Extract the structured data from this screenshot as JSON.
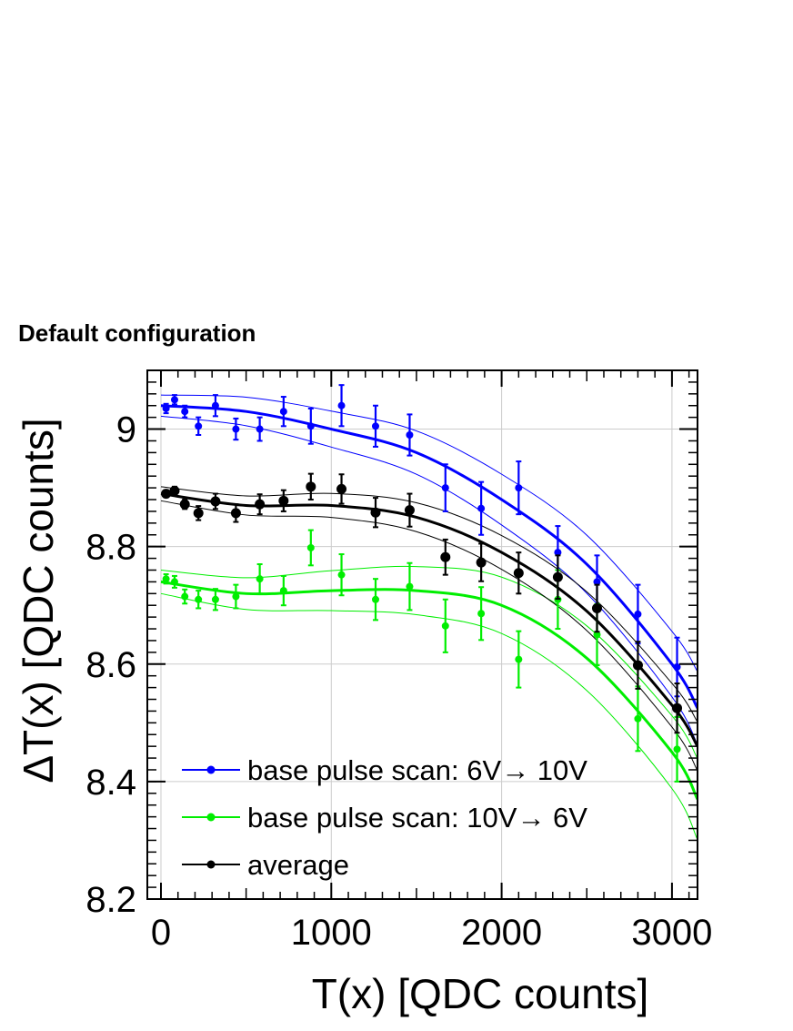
{
  "chart_data": {
    "type": "scatter",
    "title": "Default configuration",
    "xlabel": "T(x) [QDC counts]",
    "ylabel": "ΔT(x) [QDC counts]",
    "xlim": [
      -80,
      3150
    ],
    "ylim": [
      8.2,
      9.1
    ],
    "xticks": [
      0,
      1000,
      2000,
      3000
    ],
    "yticks": [
      8.2,
      8.4,
      8.6,
      8.8,
      9
    ],
    "ytick_labels": [
      "8.2",
      "8.4",
      "8.6",
      "8.8",
      "9"
    ],
    "grid": true,
    "legend_position": "bottom-left",
    "series": [
      {
        "name": "base pulse scan: 6V→ 10V",
        "legend_label_main": "base pulse scan: 6V",
        "legend_label_tail": " 10V",
        "color": "#0000ff",
        "x": [
          30,
          80,
          140,
          220,
          320,
          440,
          580,
          720,
          880,
          1060,
          1260,
          1460,
          1670,
          1880,
          2100,
          2330,
          2560,
          2800,
          3030
        ],
        "y": [
          9.035,
          9.05,
          9.03,
          9.005,
          9.04,
          9.0,
          9.0,
          9.03,
          9.005,
          9.04,
          9.005,
          8.99,
          8.9,
          8.865,
          8.9,
          8.79,
          8.74,
          8.685,
          8.595
        ],
        "err": [
          0.008,
          0.008,
          0.01,
          0.015,
          0.018,
          0.018,
          0.02,
          0.025,
          0.03,
          0.035,
          0.035,
          0.035,
          0.04,
          0.045,
          0.045,
          0.045,
          0.045,
          0.05,
          0.05
        ],
        "fit_x": [
          0,
          500,
          1000,
          1500,
          2000,
          2500,
          3000,
          3150
        ],
        "fit_y": [
          9.04,
          9.03,
          9.0,
          8.96,
          8.88,
          8.77,
          8.6,
          8.525
        ],
        "fit_band": 0.018
      },
      {
        "name": "base pulse scan: 10V→ 6V",
        "legend_label_main": "base pulse scan: 10V",
        "legend_label_tail": " 6V",
        "color": "#00ee00",
        "x": [
          30,
          80,
          140,
          220,
          320,
          440,
          580,
          720,
          880,
          1060,
          1260,
          1460,
          1670,
          1880,
          2100,
          2330,
          2560,
          2800,
          3030
        ],
        "y": [
          8.745,
          8.74,
          8.715,
          8.71,
          8.71,
          8.715,
          8.745,
          8.725,
          8.798,
          8.752,
          8.71,
          8.732,
          8.665,
          8.686,
          8.608,
          8.71,
          8.65,
          8.507,
          8.455
        ],
        "err": [
          0.008,
          0.01,
          0.012,
          0.015,
          0.018,
          0.02,
          0.025,
          0.025,
          0.03,
          0.035,
          0.035,
          0.04,
          0.045,
          0.045,
          0.048,
          0.05,
          0.052,
          0.055,
          0.055
        ],
        "fit_x": [
          0,
          500,
          1000,
          1500,
          2000,
          2500,
          3000,
          3150
        ],
        "fit_y": [
          8.74,
          8.72,
          8.725,
          8.725,
          8.7,
          8.61,
          8.45,
          8.37
        ],
        "fit_band": 0.02
      },
      {
        "name": "average",
        "legend_label_main": "average",
        "legend_label_tail": "",
        "color": "#000000",
        "x": [
          30,
          80,
          140,
          220,
          320,
          440,
          580,
          720,
          880,
          1060,
          1260,
          1460,
          1670,
          1880,
          2100,
          2330,
          2560,
          2800,
          3030
        ],
        "y": [
          8.89,
          8.895,
          8.872,
          8.857,
          8.877,
          8.857,
          8.872,
          8.878,
          8.902,
          8.898,
          8.858,
          8.862,
          8.782,
          8.773,
          8.755,
          8.748,
          8.695,
          8.598,
          8.525
        ],
        "err": [
          0.006,
          0.007,
          0.008,
          0.012,
          0.013,
          0.015,
          0.017,
          0.018,
          0.022,
          0.025,
          0.025,
          0.028,
          0.03,
          0.032,
          0.035,
          0.037,
          0.04,
          0.04,
          0.042
        ],
        "fit_x": [
          0,
          500,
          1000,
          1500,
          2000,
          2500,
          3000,
          3150
        ],
        "fit_y": [
          8.89,
          8.87,
          8.87,
          8.85,
          8.79,
          8.69,
          8.53,
          8.46
        ],
        "fit_band": 0.012
      }
    ]
  }
}
